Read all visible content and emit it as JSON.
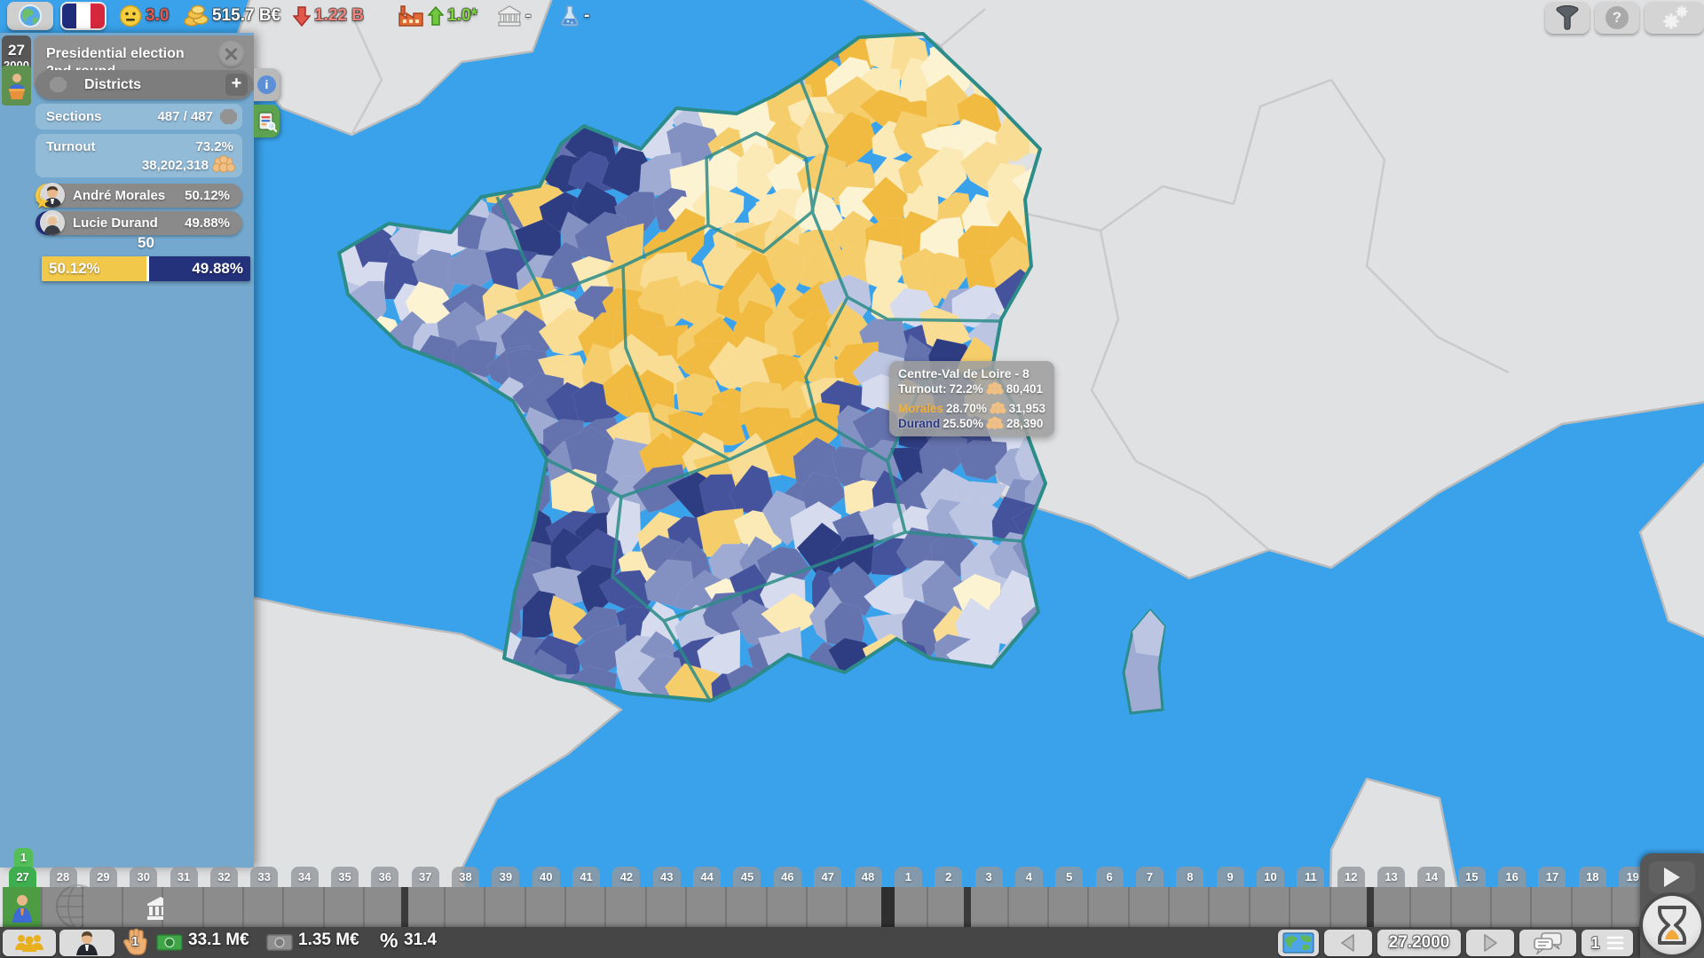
{
  "top_bar": {
    "mood_value": "3.0",
    "treasury_value": "515.7 B€",
    "deficit_value": "1.22 B",
    "growth_value": "1.0*",
    "bank_value": "-",
    "research_value": "-"
  },
  "top_right": {
    "help_glyph": "?"
  },
  "panel": {
    "date_week": "27",
    "date_year": "2000",
    "title_line1": "Presidential election",
    "title_line2": "2nd round",
    "close_glyph": "✕",
    "districts_label": "Districts",
    "plus_glyph": "+",
    "sections_label": "Sections",
    "sections_value": "487 / 487",
    "turnout_label": "Turnout",
    "turnout_pct": "73.2%",
    "turnout_count": "38,202,318",
    "candidates": [
      {
        "name": "André Morales",
        "pct": "50.12%",
        "color": "#F2C84B"
      },
      {
        "name": "Lucie Durand",
        "pct": "49.88%",
        "color": "#24317B"
      }
    ],
    "bar": {
      "midpoint": "50",
      "left_label": "50.12%",
      "right_label": "49.88%",
      "left_width_pct": 50.12
    },
    "info_glyph": "i"
  },
  "tooltip": {
    "title": "Centre-Val de Loire - 8",
    "turnout_label": "Turnout:",
    "turnout_pct": "72.2%",
    "turnout_count": "80,401",
    "rows": [
      {
        "name": "Morales",
        "pct": "28.70%",
        "count": "31,953"
      },
      {
        "name": "Durand",
        "pct": "25.50%",
        "count": "28,390"
      }
    ]
  },
  "timeline": {
    "weeks": [
      "27",
      "28",
      "29",
      "30",
      "31",
      "32",
      "33",
      "34",
      "35",
      "36",
      "37",
      "38",
      "39",
      "40",
      "41",
      "42",
      "43",
      "44",
      "45",
      "46",
      "47",
      "48",
      "1",
      "2",
      "3",
      "4",
      "5",
      "6",
      "7",
      "8",
      "9",
      "10",
      "11",
      "12",
      "13",
      "14",
      "15",
      "16",
      "17",
      "18",
      "19"
    ],
    "current_index": 0,
    "event_badge": "1",
    "year_break_after": 21,
    "event_markers_after": [
      9,
      23,
      33
    ]
  },
  "status_bar": {
    "hand_count": "1",
    "cash_main": "33.1 M€",
    "cash_secondary": "1.35 M€",
    "percent_symbol": "%",
    "percent_value": "31.4",
    "date_nav": "27.2000",
    "queue_count": "1"
  },
  "map": {
    "sea_color": "#3AA2EB",
    "land_color": "#E0E1E2",
    "land_border": "#B9BBBD",
    "region_border": "#2B8C89",
    "palette_yellow": [
      "#F1BB42",
      "#F6CD6B",
      "#F9DD95",
      "#FBE9B6",
      "#FCF3D3"
    ],
    "palette_blue": [
      "#2E3C82",
      "#44539B",
      "#6472AE",
      "#8290C2",
      "#9FABD3",
      "#BCC5E2",
      "#D6DCEE"
    ]
  }
}
